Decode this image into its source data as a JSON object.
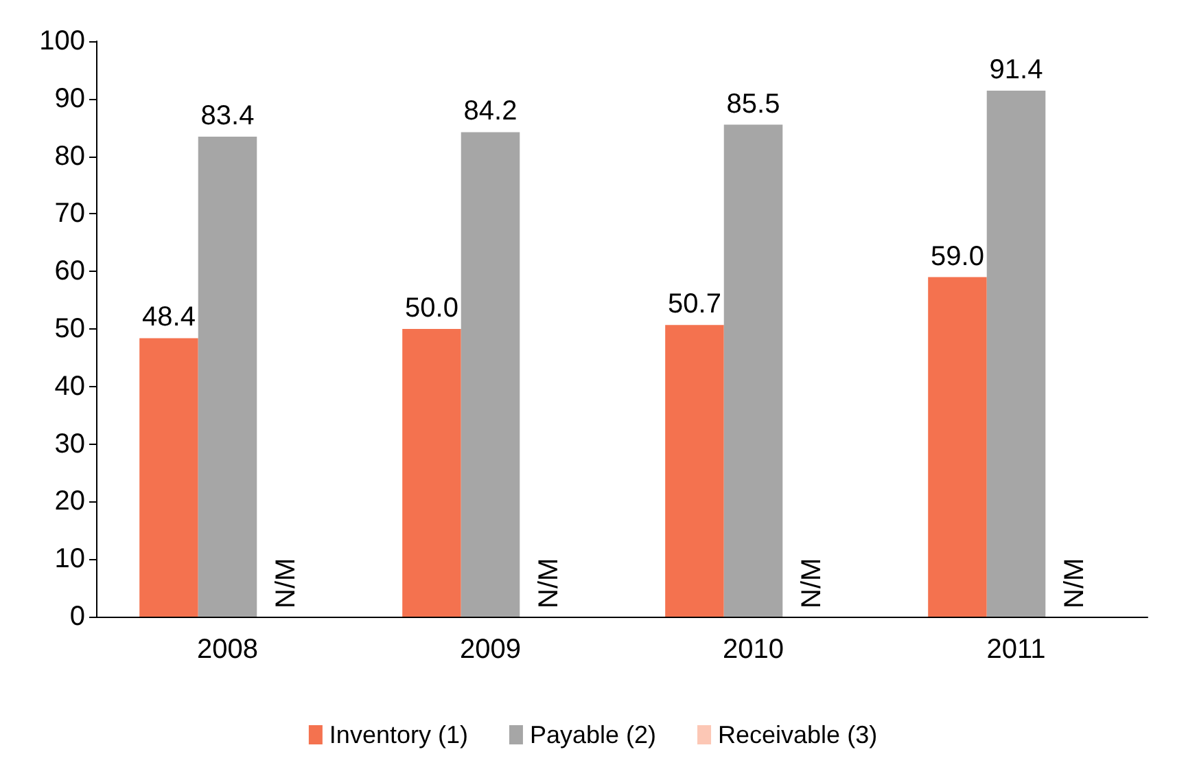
{
  "chart_data": {
    "type": "bar",
    "categories": [
      "2008",
      "2009",
      "2010",
      "2011"
    ],
    "series": [
      {
        "name": "Inventory (1)",
        "color": "#f4724f",
        "values": [
          48.4,
          50.0,
          50.7,
          59.0
        ],
        "value_labels": [
          "48.4",
          "50.0",
          "50.7",
          "59.0"
        ]
      },
      {
        "name": "Payable (2)",
        "color": "#a6a6a6",
        "values": [
          83.4,
          84.2,
          85.5,
          91.4
        ],
        "value_labels": [
          "83.4",
          "84.2",
          "85.5",
          "91.4"
        ]
      },
      {
        "name": "Receivable (3)",
        "color": "#fcc7b5",
        "values": [
          null,
          null,
          null,
          null
        ],
        "value_labels": [
          "N/M",
          "N/M",
          "N/M",
          "N/M"
        ]
      }
    ],
    "ylim": [
      0,
      100
    ],
    "yticks": [
      0,
      10,
      20,
      30,
      40,
      50,
      60,
      70,
      80,
      90,
      100
    ],
    "grid": false,
    "legend": "bottom"
  }
}
